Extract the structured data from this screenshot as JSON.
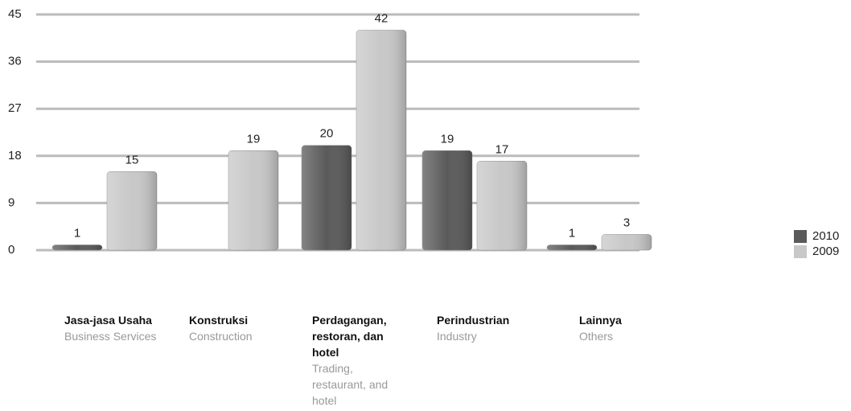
{
  "chart_data": {
    "type": "bar",
    "categories": [
      "Jasa-jasa Usaha",
      "Konstruksi",
      "Perdagangan, restoran, dan hotel",
      "Perindustrian",
      "Lainnya"
    ],
    "category_subtitles": [
      "Business Services",
      "Construction",
      "Trading, restaurant, and hotel",
      "Industry",
      "Others"
    ],
    "series": [
      {
        "name": "2010",
        "color": "#5a5a5a",
        "values": [
          1,
          null,
          20,
          19,
          1
        ]
      },
      {
        "name": "2009",
        "color": "#c8c8c8",
        "values": [
          15,
          19,
          42,
          17,
          3
        ]
      }
    ],
    "ylim": [
      0,
      45
    ],
    "yticks": [
      0,
      9,
      18,
      27,
      36,
      45
    ],
    "grid": true,
    "legend": "right"
  }
}
